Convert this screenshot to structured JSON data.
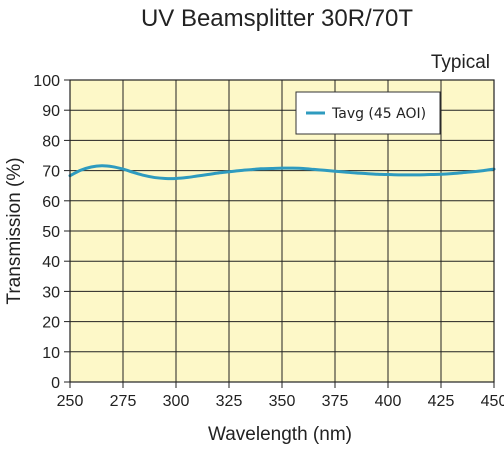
{
  "chart_data": {
    "type": "line",
    "title": "UV Beamsplitter 30R/70T",
    "annotation": "Typical",
    "xlabel": "Wavelength (nm)",
    "ylabel": "Transmission (%)",
    "xlim": [
      250,
      450
    ],
    "ylim": [
      0,
      100
    ],
    "x_ticks": [
      250,
      275,
      300,
      325,
      350,
      375,
      400,
      425,
      450
    ],
    "y_ticks": [
      0,
      10,
      20,
      30,
      40,
      50,
      60,
      70,
      80,
      90,
      100
    ],
    "grid": true,
    "legend_position": "top-right",
    "plot_background": "#fdf8c8",
    "series": [
      {
        "name": "Tavg (45 AOI)",
        "color": "#2e9bbf",
        "x": [
          250,
          255,
          260,
          265,
          270,
          275,
          280,
          285,
          290,
          295,
          300,
          305,
          310,
          315,
          320,
          325,
          330,
          335,
          340,
          345,
          350,
          355,
          360,
          365,
          370,
          375,
          380,
          385,
          390,
          395,
          400,
          405,
          410,
          415,
          420,
          425,
          430,
          435,
          440,
          445,
          450
        ],
        "y": [
          68.3,
          70.1,
          71.2,
          71.6,
          71.3,
          70.5,
          69.4,
          68.4,
          67.7,
          67.4,
          67.4,
          67.7,
          68.2,
          68.7,
          69.2,
          69.6,
          70.0,
          70.3,
          70.6,
          70.7,
          70.8,
          70.8,
          70.7,
          70.4,
          70.1,
          69.8,
          69.5,
          69.2,
          69.0,
          68.8,
          68.7,
          68.6,
          68.6,
          68.6,
          68.7,
          68.8,
          69.0,
          69.3,
          69.6,
          70.0,
          70.5
        ]
      }
    ]
  }
}
